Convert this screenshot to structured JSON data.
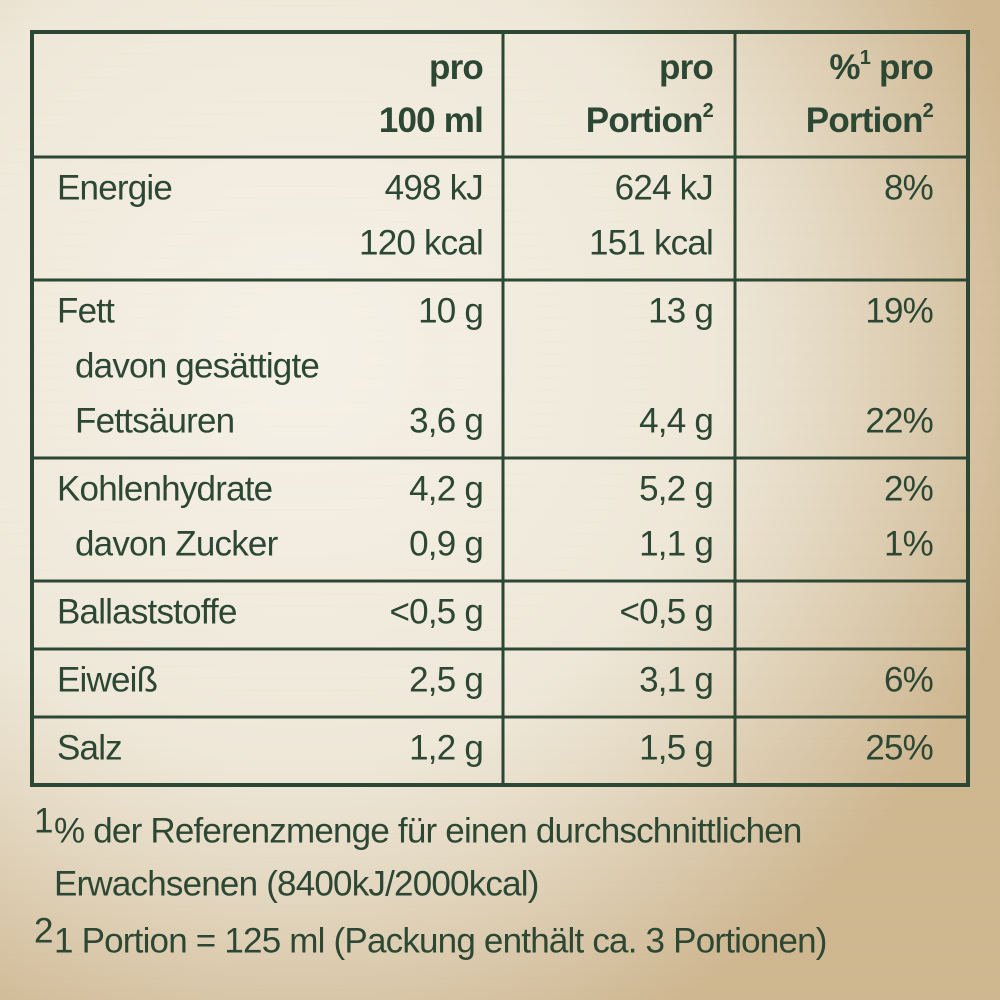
{
  "header": [
    {
      "lines": [
        "pro",
        "100 ml"
      ]
    },
    {
      "lines": [
        "pro",
        "Portion"
      ],
      "sup": "2"
    },
    {
      "prefix": "%",
      "prefix_sup": "1",
      "lines": [
        "pro",
        "Portion"
      ],
      "sup": "2"
    }
  ],
  "rows": [
    {
      "items": [
        {
          "label": "Energie",
          "values": [
            "498 kJ",
            "624 kJ",
            "8%"
          ]
        },
        {
          "values": [
            "120 kcal",
            "151 kcal"
          ]
        }
      ]
    },
    {
      "items": [
        {
          "label": "Fett",
          "values": [
            "10 g",
            "13 g",
            "19%"
          ]
        },
        {
          "label": "davon gesättigte",
          "indent": true
        },
        {
          "label": "Fettsäuren",
          "indent": true,
          "values": [
            "3,6 g",
            "4,4 g",
            "22%"
          ]
        }
      ]
    },
    {
      "items": [
        {
          "label": "Kohlenhydrate",
          "values": [
            "4,2 g",
            "5,2 g",
            "2%"
          ]
        },
        {
          "label": "davon Zucker",
          "indent": true,
          "values": [
            "0,9 g",
            "1,1 g",
            "1%"
          ]
        }
      ]
    },
    {
      "items": [
        {
          "label": "Ballaststoffe",
          "values": [
            "<0,5 g",
            "<0,5 g"
          ]
        }
      ]
    },
    {
      "items": [
        {
          "label": "Eiweiß",
          "values": [
            "2,5 g",
            "3,1 g",
            "6%"
          ]
        }
      ]
    },
    {
      "items": [
        {
          "label": "Salz",
          "values": [
            "1,2 g",
            "1,5 g",
            "25%"
          ]
        }
      ]
    }
  ],
  "footnotes": [
    {
      "mark": "1",
      "lines": [
        "% der Referenzmenge für einen durchschnittlichen",
        "Erwachsenen (8400kJ/2000kcal)"
      ]
    },
    {
      "mark": "2",
      "lines": [
        "1 Portion = 125 ml (Packung enthält ca. 3 Portionen)"
      ]
    }
  ]
}
